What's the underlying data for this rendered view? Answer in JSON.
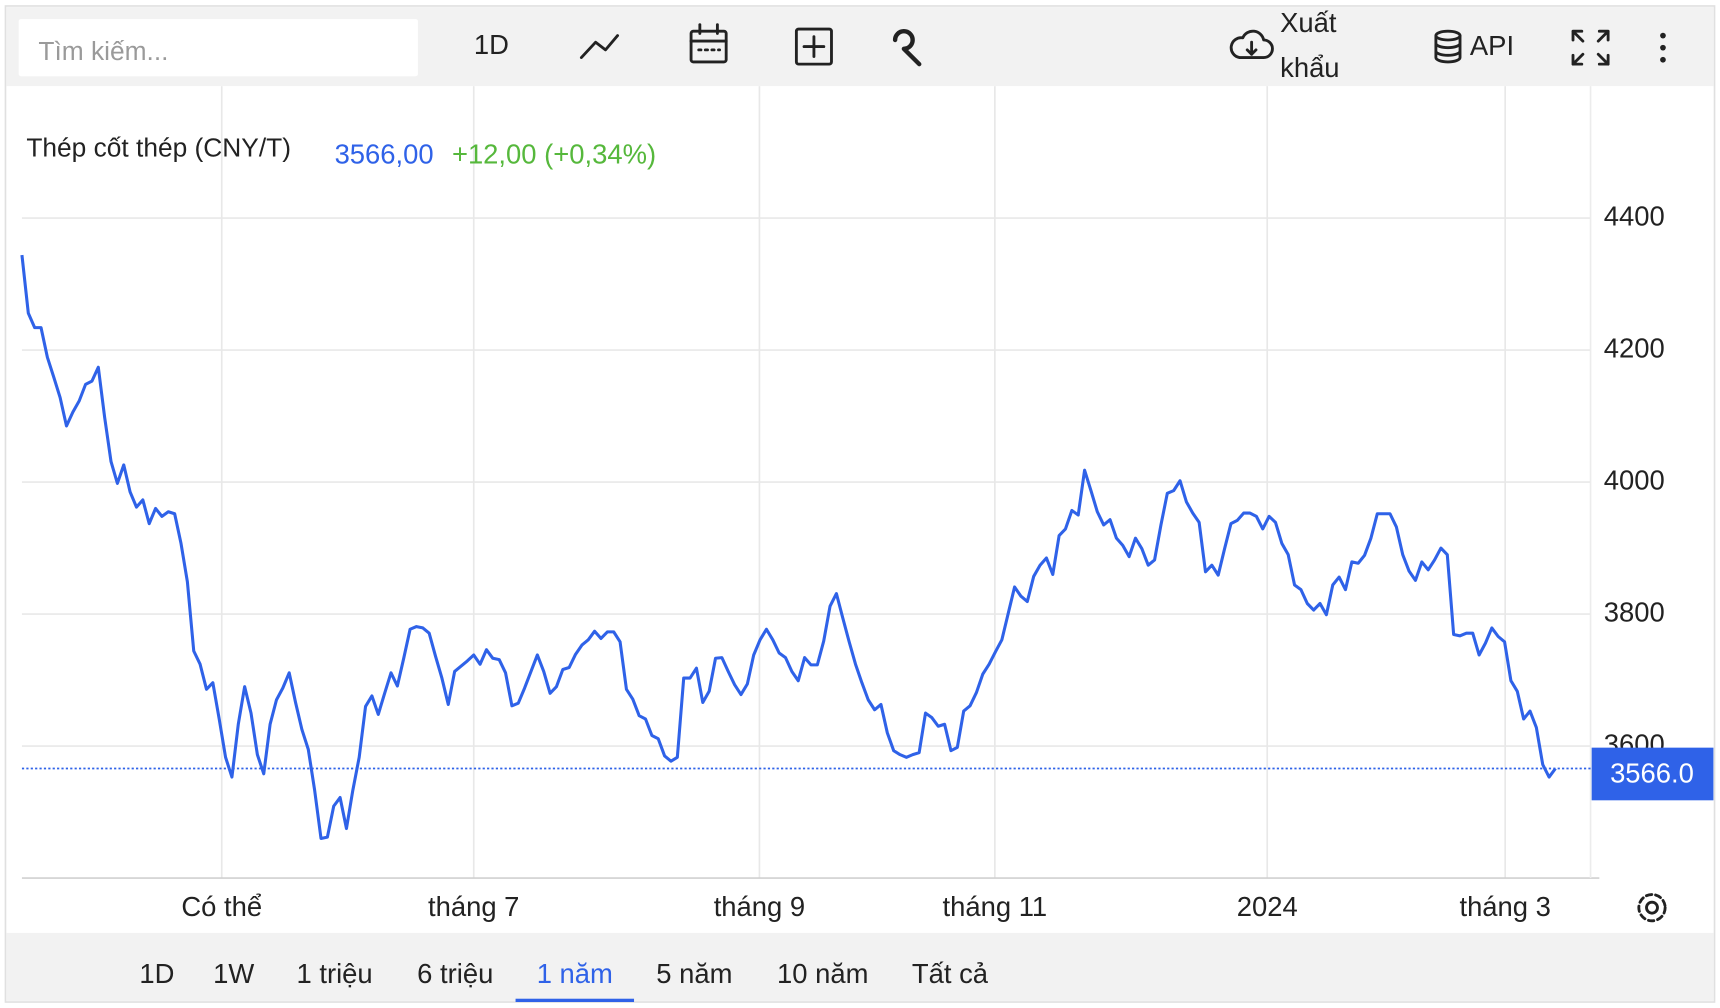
{
  "toolbar": {
    "search_placeholder": "Tìm kiếm...",
    "interval": "1D",
    "export_line1": "Xuất",
    "export_line2": "khẩu",
    "api": "API"
  },
  "chart_data": {
    "type": "line",
    "title": "Thép cốt thép (CNY/T)",
    "last_price": "3566,00",
    "change": "+12,00 (+0,34%)",
    "price_label": "3566.0",
    "color": "#2f62e8",
    "grid": true,
    "values": [
      4344,
      4256,
      4234,
      4234,
      4189,
      4159,
      4128,
      4085,
      4106,
      4123,
      4148,
      4153,
      4174,
      4098,
      4031,
      3998,
      4026,
      3985,
      3962,
      3973,
      3937,
      3960,
      3948,
      3955,
      3952,
      3907,
      3849,
      3744,
      3724,
      3686,
      3696,
      3641,
      3583,
      3553,
      3633,
      3690,
      3650,
      3587,
      3558,
      3633,
      3670,
      3688,
      3711,
      3666,
      3625,
      3595,
      3533,
      3460,
      3462,
      3509,
      3522,
      3475,
      3533,
      3583,
      3660,
      3676,
      3648,
      3680,
      3711,
      3691,
      3733,
      3777,
      3781,
      3779,
      3771,
      3736,
      3703,
      3663,
      3713,
      3721,
      3729,
      3738,
      3724,
      3746,
      3733,
      3731,
      3711,
      3661,
      3665,
      3688,
      3713,
      3738,
      3713,
      3680,
      3690,
      3716,
      3719,
      3739,
      3753,
      3761,
      3774,
      3763,
      3773,
      3773,
      3758,
      3686,
      3671,
      3646,
      3641,
      3616,
      3611,
      3585,
      3577,
      3583,
      3703,
      3703,
      3718,
      3666,
      3683,
      3733,
      3734,
      3713,
      3693,
      3678,
      3694,
      3738,
      3761,
      3777,
      3761,
      3741,
      3734,
      3713,
      3699,
      3734,
      3723,
      3723,
      3759,
      3812,
      3831,
      3794,
      3758,
      3724,
      3696,
      3670,
      3655,
      3663,
      3620,
      3593,
      3587,
      3583,
      3587,
      3590,
      3650,
      3643,
      3630,
      3633,
      3593,
      3598,
      3653,
      3661,
      3681,
      3709,
      3724,
      3743,
      3761,
      3801,
      3841,
      3827,
      3819,
      3857,
      3874,
      3885,
      3860,
      3919,
      3929,
      3957,
      3950,
      4018,
      3987,
      3955,
      3935,
      3943,
      3915,
      3904,
      3887,
      3915,
      3899,
      3874,
      3882,
      3935,
      3983,
      3987,
      4002,
      3970,
      3953,
      3939,
      3864,
      3874,
      3859,
      3899,
      3937,
      3942,
      3953,
      3953,
      3948,
      3929,
      3948,
      3939,
      3907,
      3890,
      3844,
      3837,
      3816,
      3806,
      3816,
      3799,
      3844,
      3856,
      3837,
      3879,
      3877,
      3889,
      3915,
      3952,
      3952,
      3952,
      3932,
      3890,
      3865,
      3851,
      3879,
      3867,
      3882,
      3900,
      3890,
      3769,
      3767,
      3771,
      3771,
      3738,
      3756,
      3779,
      3766,
      3758,
      3699,
      3683,
      3641,
      3653,
      3628,
      3572,
      3553,
      3566
    ],
    "xlim": [
      0,
      241
    ],
    "xticks": [
      {
        "value": 31.4,
        "label": "Có thể"
      },
      {
        "value": 71,
        "label": "tháng 7"
      },
      {
        "value": 115.9,
        "label": "tháng 9"
      },
      {
        "value": 152.9,
        "label": "tháng 11"
      },
      {
        "value": 195.7,
        "label": "2024"
      },
      {
        "value": 233.1,
        "label": "tháng 3"
      }
    ],
    "ylim": [
      3400,
      4600
    ],
    "yticks": [
      3600,
      3800,
      4000,
      4200,
      4400
    ]
  },
  "ranges": {
    "items": [
      "1D",
      "1W",
      "1 triệu",
      "6 triệu",
      "1 năm",
      "5 năm",
      "10 năm",
      "Tất cả"
    ],
    "active": 4
  }
}
